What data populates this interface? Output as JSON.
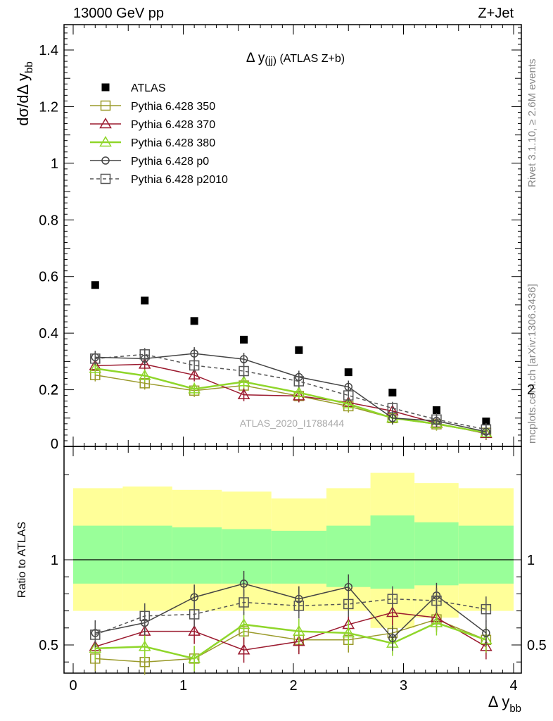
{
  "header": {
    "left": "13000 GeV pp",
    "right": "Z+Jet",
    "side_top": "Rivet 3.1.10, ≥ 2.6M events",
    "side_bottom": "mcplots.cern.ch [arXiv:1306.3436]",
    "watermark": "ATLAS_2020_I1788444"
  },
  "chart_data": [
    {
      "type": "scatter",
      "title": "Δ y(jj) (ATLAS Z+b)",
      "ylabel": "dσ/dΔ y_bb",
      "xlim": [
        0,
        4
      ],
      "ylim": [
        0,
        1.5
      ],
      "yticks": [
        "0",
        "0.2",
        "0.4",
        "0.6",
        "0.8",
        "1",
        "1.2",
        "1.4"
      ],
      "legend_placement": "top-left",
      "x": [
        0.2,
        0.65,
        1.1,
        1.55,
        2.05,
        2.5,
        2.9,
        3.3,
        3.75
      ],
      "series": [
        {
          "name": "ATLAS",
          "color": "#000000",
          "marker": "filled-square",
          "line": "none",
          "values": [
            0.57,
            0.515,
            0.443,
            0.377,
            0.34,
            0.262,
            0.19,
            0.128,
            0.088
          ]
        },
        {
          "name": "Pythia 6.428 350",
          "color": "#9a9a2a",
          "marker": "open-square",
          "line": "solid",
          "values": [
            0.252,
            0.223,
            0.197,
            0.215,
            0.178,
            0.142,
            0.1,
            0.078,
            0.048
          ]
        },
        {
          "name": "Pythia 6.428 370",
          "color": "#9b1a2f",
          "marker": "open-triangle",
          "line": "solid",
          "values": [
            0.285,
            0.29,
            0.252,
            0.182,
            0.178,
            0.155,
            0.125,
            0.082,
            0.045
          ]
        },
        {
          "name": "Pythia 6.428 380",
          "color": "#8fd62a",
          "marker": "open-triangle",
          "line": "solid",
          "values": [
            0.275,
            0.25,
            0.203,
            0.228,
            0.19,
            0.15,
            0.1,
            0.08,
            0.048
          ]
        },
        {
          "name": "Pythia 6.428 p0",
          "color": "#444444",
          "marker": "open-circle",
          "line": "solid",
          "values": [
            0.315,
            0.31,
            0.328,
            0.308,
            0.245,
            0.21,
            0.1,
            0.09,
            0.052
          ]
        },
        {
          "name": "Pythia 6.428 p2010",
          "color": "#555555",
          "marker": "open-square",
          "line": "dashed",
          "values": [
            0.31,
            0.325,
            0.286,
            0.266,
            0.23,
            0.18,
            0.135,
            0.095,
            0.06
          ]
        }
      ]
    },
    {
      "type": "line",
      "ylabel": "Ratio to ATLAS",
      "xlabel": "Δ y_bb",
      "xlim": [
        0,
        4
      ],
      "ylim": [
        0.35,
        2.3
      ],
      "xticks": [
        "0",
        "1",
        "2",
        "3",
        "4"
      ],
      "yticks": [
        "0.5",
        "1",
        "2"
      ],
      "reference_line": 1,
      "bins": [
        [
          0,
          0.45
        ],
        [
          0.45,
          0.9
        ],
        [
          0.9,
          1.35
        ],
        [
          1.35,
          1.8
        ],
        [
          1.8,
          2.3
        ],
        [
          2.3,
          2.7
        ],
        [
          2.7,
          3.1
        ],
        [
          3.1,
          3.5
        ],
        [
          3.5,
          4.0
        ]
      ],
      "band_yellow": [
        [
          0.7,
          1.42
        ],
        [
          0.7,
          1.43
        ],
        [
          0.7,
          1.41
        ],
        [
          0.7,
          1.4
        ],
        [
          0.7,
          1.36
        ],
        [
          0.7,
          1.42
        ],
        [
          0.6,
          1.51
        ],
        [
          0.66,
          1.45
        ],
        [
          0.7,
          1.42
        ]
      ],
      "band_green": [
        [
          0.86,
          1.2
        ],
        [
          0.86,
          1.2
        ],
        [
          0.86,
          1.19
        ],
        [
          0.86,
          1.18
        ],
        [
          0.86,
          1.17
        ],
        [
          0.84,
          1.2
        ],
        [
          0.83,
          1.26
        ],
        [
          0.85,
          1.22
        ],
        [
          0.86,
          1.2
        ]
      ],
      "x": [
        0.2,
        0.65,
        1.1,
        1.55,
        2.05,
        2.5,
        2.9,
        3.3,
        3.75
      ],
      "series": [
        {
          "name": "Pythia 6.428 350",
          "values": [
            0.42,
            0.4,
            0.42,
            0.58,
            0.53,
            0.53,
            0.57,
            0.65,
            0.53
          ]
        },
        {
          "name": "Pythia 6.428 370",
          "values": [
            0.49,
            0.58,
            0.58,
            0.47,
            0.52,
            0.62,
            0.69,
            0.66,
            0.49
          ]
        },
        {
          "name": "Pythia 6.428 380",
          "values": [
            0.48,
            0.49,
            0.42,
            0.62,
            0.58,
            0.57,
            0.51,
            0.63,
            0.53
          ]
        },
        {
          "name": "Pythia 6.428 p0",
          "values": [
            0.57,
            0.63,
            0.78,
            0.86,
            0.77,
            0.84,
            0.54,
            0.79,
            0.57
          ]
        },
        {
          "name": "Pythia 6.428 p2010",
          "values": [
            0.56,
            0.67,
            0.68,
            0.75,
            0.73,
            0.74,
            0.77,
            0.76,
            0.71
          ]
        }
      ]
    }
  ]
}
